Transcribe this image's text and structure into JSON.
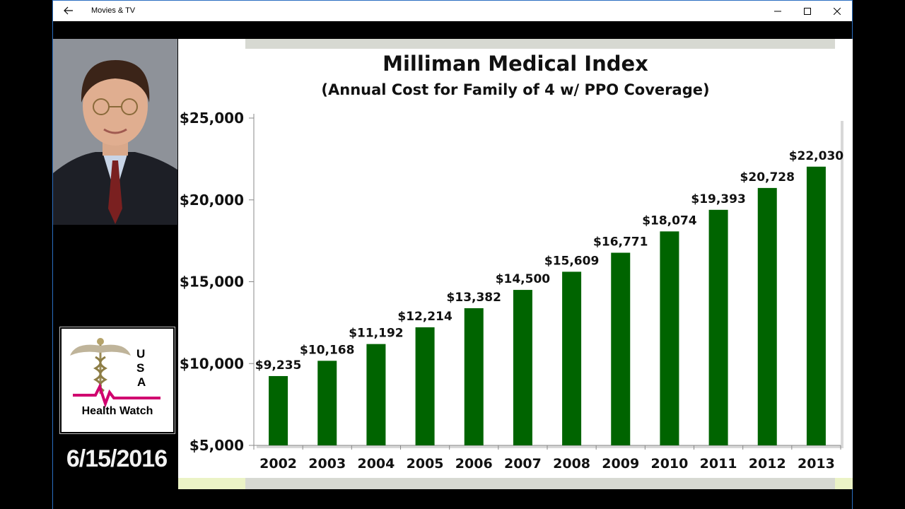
{
  "window": {
    "app_title": "Movies & TV",
    "back_icon": "arrow-left-icon",
    "minimize_icon": "minimize-icon",
    "maximize_icon": "maximize-icon",
    "close_icon": "close-icon"
  },
  "overlay": {
    "logo": {
      "letters": [
        "U",
        "S",
        "A"
      ],
      "text": "Health Watch",
      "accent_color": "#d0006f"
    },
    "date": "6/15/2016"
  },
  "chart_data": {
    "type": "bar",
    "title": "Milliman Medical Index",
    "subtitle": "(Annual Cost for Family of 4 w/ PPO Coverage)",
    "categories": [
      "2002",
      "2003",
      "2004",
      "2005",
      "2006",
      "2007",
      "2008",
      "2009",
      "2010",
      "2011",
      "2012",
      "2013"
    ],
    "values": [
      9235,
      10168,
      11192,
      12214,
      13382,
      14500,
      15609,
      16771,
      18074,
      19393,
      20728,
      22030
    ],
    "data_labels": [
      "$9,235",
      "$10,168",
      "$11,192",
      "$12,214",
      "$13,382",
      "$14,500",
      "$15,609",
      "$16,771",
      "$18,074",
      "$19,393",
      "$20,728",
      "$22,030"
    ],
    "yticks": [
      5000,
      10000,
      15000,
      20000,
      25000
    ],
    "ytick_labels": [
      "$5,000",
      "$10,000",
      "$15,000",
      "$20,000",
      "$25,000"
    ],
    "ylim": [
      5000,
      25000
    ],
    "xlabel": "",
    "ylabel": "",
    "grid": false,
    "bar_color": "#006400"
  }
}
